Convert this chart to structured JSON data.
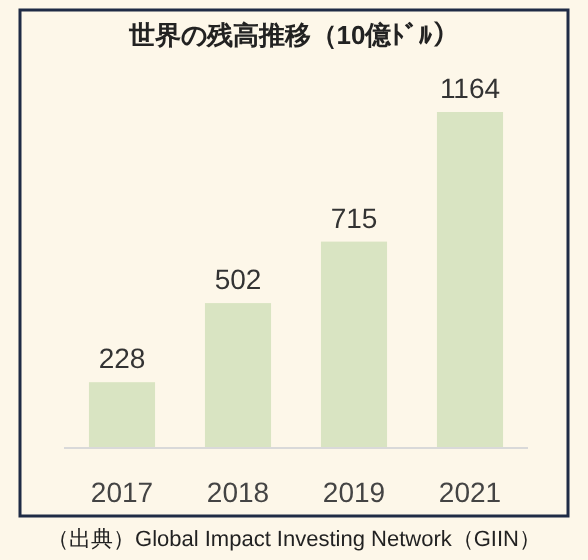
{
  "chart_data": {
    "type": "bar",
    "title": "世界の残高推移（10億ﾄﾞﾙ）",
    "categories": [
      "2017",
      "2018",
      "2019",
      "2021"
    ],
    "values": [
      228,
      502,
      715,
      1164
    ],
    "color": "#d9e4c2",
    "data_labels": true,
    "annotations": [
      "（出典）Global Impact Investing Network（GIIN）"
    ]
  }
}
